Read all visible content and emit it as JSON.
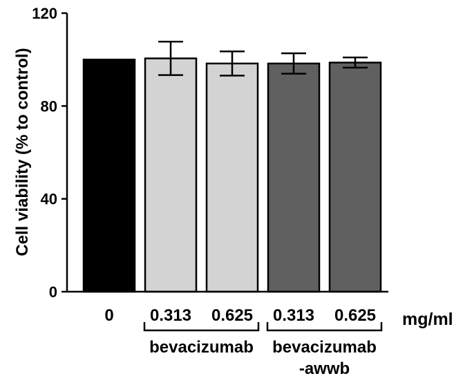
{
  "chart_data": {
    "type": "bar",
    "ylabel": "Cell viability (% to control)",
    "ylim": [
      0,
      120
    ],
    "yticks": [
      "0",
      "40",
      "80",
      "120"
    ],
    "categories": [
      "0",
      "0.313",
      "0.625",
      "0.313",
      "0.625"
    ],
    "values": [
      100,
      100.5,
      98.3,
      98.3,
      98.7
    ],
    "errors": [
      0,
      7.2,
      5.2,
      4.4,
      2.2
    ],
    "bar_colors": [
      "#000000",
      "#d3d3d3",
      "#d3d3d3",
      "#606060",
      "#606060"
    ],
    "unit_label": "mg/ml",
    "groups": [
      {
        "label": "bevacizumab",
        "label_lines": [
          "bevacizumab"
        ],
        "bars": [
          1,
          2
        ]
      },
      {
        "label": "bevacizumab-awwb",
        "label_lines": [
          "bevacizumab",
          "-awwb"
        ],
        "bars": [
          3,
          4
        ]
      }
    ]
  }
}
